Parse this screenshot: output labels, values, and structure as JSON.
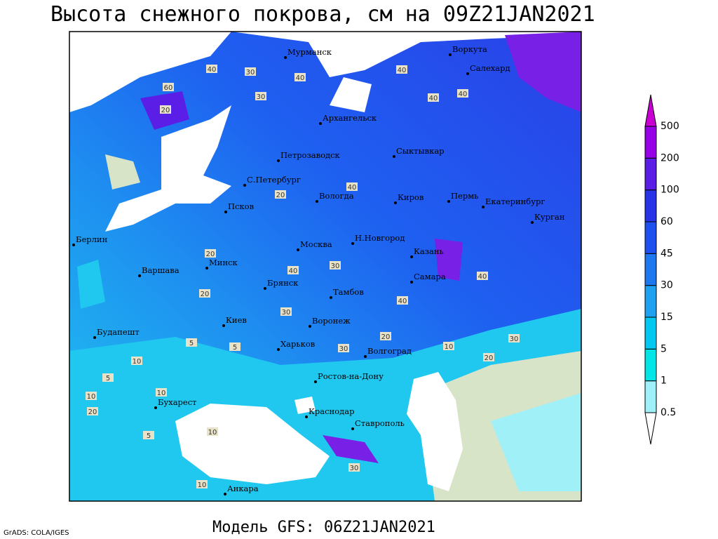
{
  "title": "Высота снежного покрова, см на 09Z21JAN2021",
  "footer": "Модель GFS: 06Z21JAN2021",
  "credit": "GrADS: COLA/IGES",
  "cities": [
    "Мурманск",
    "Воркута",
    "Салехард",
    "Архангельск",
    "Петрозаводск",
    "Сыктывкар",
    "С.Петербург",
    "Вологда",
    "Киров",
    "Пермь",
    "Екатеринбург",
    "Курган",
    "Псков",
    "Берлин",
    "Н.Новгород",
    "Москва",
    "Казань",
    "Минск",
    "Варшава",
    "Самара",
    "Брянск",
    "Тамбов",
    "Киев",
    "Воронеж",
    "Будапешт",
    "Харьков",
    "Волгоград",
    "Ростов-на-Дону",
    "Бухарест",
    "Краснодар",
    "Ставрополь",
    "Анкара"
  ],
  "contour_labels": [
    40,
    30,
    40,
    40,
    40,
    60,
    30,
    40,
    20,
    40,
    20,
    20,
    30,
    40,
    40,
    30,
    20,
    30,
    40,
    10,
    5,
    20,
    30,
    10,
    5,
    10,
    20,
    5,
    10,
    30,
    10,
    5,
    10,
    20
  ],
  "legend": {
    "levels": [
      {
        "value": 0.5,
        "color": "#a0f0f8"
      },
      {
        "value": 1,
        "color": "#00e6e6"
      },
      {
        "value": 5,
        "color": "#00c8f0"
      },
      {
        "value": 15,
        "color": "#20a0f0"
      },
      {
        "value": 30,
        "color": "#1e78f0"
      },
      {
        "value": 45,
        "color": "#1e50f0"
      },
      {
        "value": 60,
        "color": "#2832e6"
      },
      {
        "value": 100,
        "color": "#5a1ee6"
      },
      {
        "value": 200,
        "color": "#9600e6"
      },
      {
        "value": 500,
        "color": "#c800d2"
      }
    ]
  }
}
